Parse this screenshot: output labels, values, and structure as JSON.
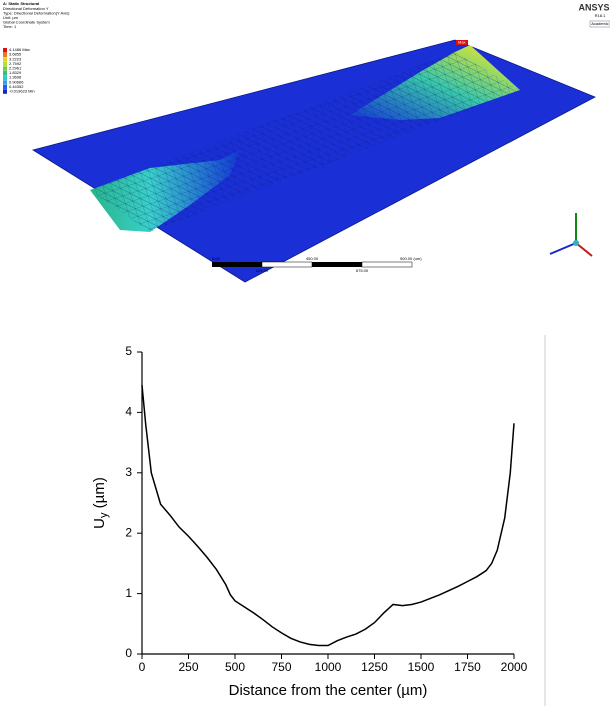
{
  "screenshot": {
    "title": "A: Static Structural",
    "info": [
      "Directional Deformation Y",
      "Type: Directional Deformation(Y Axis)",
      "Unit: µm",
      "Global Coordinate System",
      "Time: 1"
    ],
    "legend": [
      "4.1486 Max",
      "3.6855",
      "3.2223",
      "2.7592",
      "2.2961",
      "1.8329",
      "1.3698",
      "0.90666",
      "0.44352",
      "-0.019623 Min"
    ],
    "max_tag": "Max",
    "brand": "ANSYS",
    "version": "R18.1",
    "edition": "Academic",
    "scale_top": [
      "0.00",
      "450.00",
      "900.00 (um)"
    ],
    "scale_bottom": [
      "225.00",
      "675.00"
    ]
  },
  "chart_data": {
    "type": "line",
    "xlabel": "Distance from the center (µm)",
    "ylabel": [
      "U",
      "y",
      "(µm)"
    ],
    "xlim": [
      0,
      2000
    ],
    "ylim": [
      0,
      5
    ],
    "xticks": [
      0,
      250,
      500,
      750,
      1000,
      1250,
      1500,
      1750,
      2000
    ],
    "yticks": [
      0,
      1,
      2,
      3,
      4,
      5
    ],
    "color": "#000000",
    "x": [
      0,
      20,
      50,
      100,
      150,
      200,
      250,
      300,
      350,
      400,
      450,
      475,
      500,
      550,
      600,
      650,
      700,
      750,
      800,
      850,
      900,
      950,
      1000,
      1050,
      1100,
      1150,
      1200,
      1250,
      1300,
      1350,
      1400,
      1450,
      1500,
      1550,
      1600,
      1650,
      1700,
      1750,
      1800,
      1850,
      1880,
      1910,
      1950,
      1980,
      2000
    ],
    "values": [
      4.45,
      3.8,
      3.0,
      2.48,
      2.3,
      2.1,
      1.95,
      1.78,
      1.6,
      1.4,
      1.15,
      0.98,
      0.88,
      0.78,
      0.68,
      0.57,
      0.45,
      0.35,
      0.26,
      0.2,
      0.16,
      0.14,
      0.14,
      0.22,
      0.28,
      0.33,
      0.41,
      0.52,
      0.68,
      0.82,
      0.8,
      0.82,
      0.86,
      0.92,
      0.98,
      1.05,
      1.12,
      1.2,
      1.28,
      1.38,
      1.5,
      1.72,
      2.25,
      3.0,
      3.82
    ]
  }
}
